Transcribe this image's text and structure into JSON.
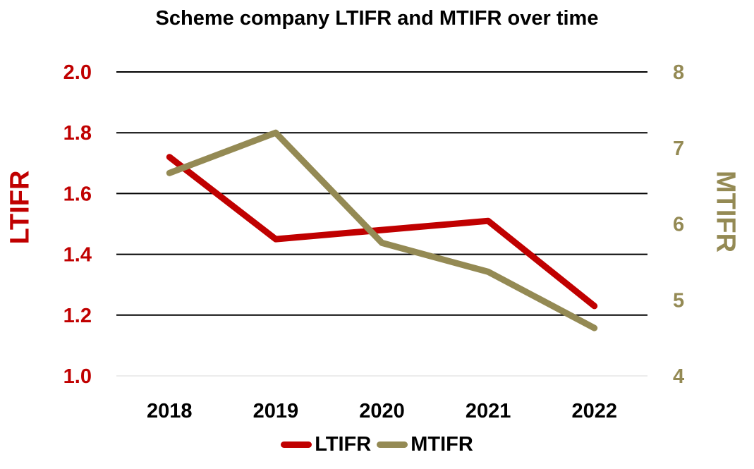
{
  "chart_data": {
    "type": "line",
    "title": "Scheme company LTIFR and MTIFR over time",
    "categories": [
      "2018",
      "2019",
      "2020",
      "2021",
      "2022"
    ],
    "series": [
      {
        "name": "LTIFR",
        "axis": "left",
        "color": "#c00000",
        "values": [
          1.72,
          1.45,
          1.48,
          1.51,
          1.23
        ]
      },
      {
        "name": "MTIFR",
        "axis": "right",
        "color": "#948a54",
        "values": [
          6.67,
          7.2,
          5.75,
          5.37,
          4.63
        ]
      }
    ],
    "ylabel": "LTIFR",
    "ylabel_right": "MTIFR",
    "ylim": [
      1.0,
      2.0
    ],
    "ylim_right": [
      4,
      8
    ],
    "yticks": [
      "1.0",
      "1.2",
      "1.4",
      "1.6",
      "1.8",
      "2.0"
    ],
    "yticks_right": [
      "4",
      "5",
      "6",
      "7",
      "8"
    ],
    "left_axis_color": "#c00000",
    "right_axis_color": "#948a54",
    "grid": true,
    "legend_position": "bottom"
  }
}
